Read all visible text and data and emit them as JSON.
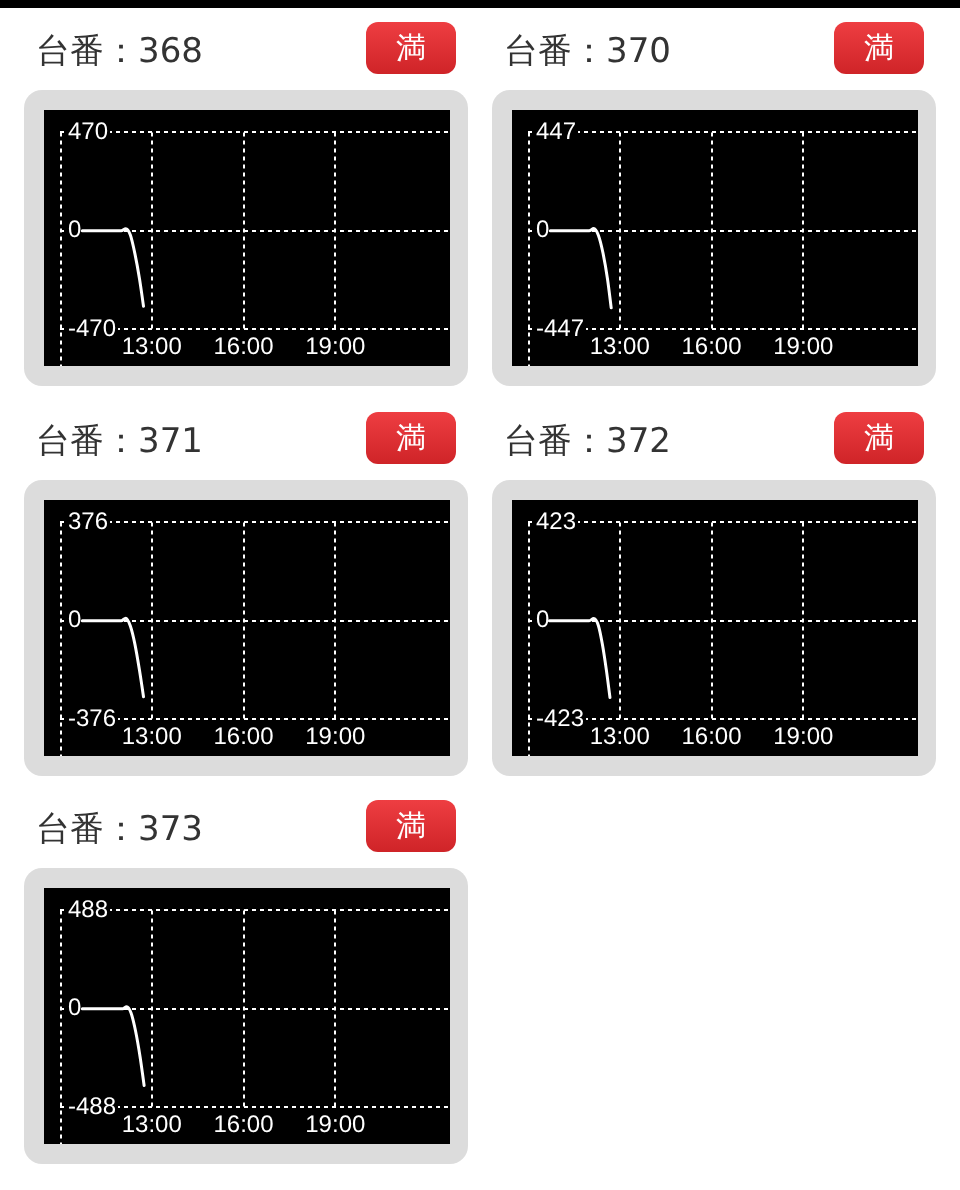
{
  "chart_data": [
    {
      "type": "line",
      "title": "台番：368",
      "annotations": [
        "満"
      ],
      "x": [
        10.73,
        12.0,
        12.15,
        12.3,
        12.45,
        12.6,
        12.73
      ],
      "values": [
        0,
        0,
        10,
        -20,
        -110,
        -230,
        -360
      ],
      "color": "#ffffff",
      "xlim": [
        10,
        22.75
      ],
      "xticks": [
        {
          "value": 13,
          "label": "13:00"
        },
        {
          "value": 16,
          "label": "16:00"
        },
        {
          "value": 19,
          "label": "19:00"
        }
      ],
      "ylim": [
        -470,
        470
      ],
      "yticks": [
        -470,
        0,
        470
      ],
      "grid": true,
      "marker": "none"
    },
    {
      "type": "line",
      "title": "台番：370",
      "annotations": [
        "満"
      ],
      "x": [
        10.73,
        12.0,
        12.15,
        12.3,
        12.45,
        12.6,
        12.72
      ],
      "values": [
        0,
        0,
        10,
        -20,
        -100,
        -220,
        -350
      ],
      "color": "#ffffff",
      "xlim": [
        10,
        22.75
      ],
      "xticks": [
        {
          "value": 13,
          "label": "13:00"
        },
        {
          "value": 16,
          "label": "16:00"
        },
        {
          "value": 19,
          "label": "19:00"
        }
      ],
      "ylim": [
        -447,
        447
      ],
      "yticks": [
        -447,
        0,
        447
      ],
      "grid": true,
      "marker": "none"
    },
    {
      "type": "line",
      "title": "台番：371",
      "annotations": [
        "満"
      ],
      "x": [
        10.73,
        12.0,
        12.15,
        12.3,
        12.45,
        12.6,
        12.73
      ],
      "values": [
        0,
        0,
        10,
        -20,
        -90,
        -190,
        -290
      ],
      "color": "#ffffff",
      "xlim": [
        10,
        22.75
      ],
      "xticks": [
        {
          "value": 13,
          "label": "13:00"
        },
        {
          "value": 16,
          "label": "16:00"
        },
        {
          "value": 19,
          "label": "19:00"
        }
      ],
      "ylim": [
        -376,
        376
      ],
      "yticks": [
        -376,
        0,
        376
      ],
      "grid": true,
      "marker": "none"
    },
    {
      "type": "line",
      "title": "台番：372",
      "annotations": [
        "満"
      ],
      "x": [
        10.7,
        12.0,
        12.15,
        12.3,
        12.43,
        12.56,
        12.68
      ],
      "values": [
        0,
        0,
        10,
        -20,
        -100,
        -210,
        -330
      ],
      "color": "#ffffff",
      "xlim": [
        10,
        22.75
      ],
      "xticks": [
        {
          "value": 13,
          "label": "13:00"
        },
        {
          "value": 16,
          "label": "16:00"
        },
        {
          "value": 19,
          "label": "19:00"
        }
      ],
      "ylim": [
        -423,
        423
      ],
      "yticks": [
        -423,
        0,
        423
      ],
      "grid": true,
      "marker": "none"
    },
    {
      "type": "line",
      "title": "台番：373",
      "annotations": [
        "満"
      ],
      "x": [
        10.73,
        12.05,
        12.18,
        12.32,
        12.47,
        12.62,
        12.75
      ],
      "values": [
        0,
        0,
        10,
        -20,
        -110,
        -240,
        -380
      ],
      "color": "#ffffff",
      "xlim": [
        10,
        22.75
      ],
      "xticks": [
        {
          "value": 13,
          "label": "13:00"
        },
        {
          "value": 16,
          "label": "16:00"
        },
        {
          "value": 19,
          "label": "19:00"
        }
      ],
      "ylim": [
        -488,
        488
      ],
      "yticks": [
        -488,
        0,
        488
      ],
      "grid": true,
      "marker": "none"
    }
  ]
}
